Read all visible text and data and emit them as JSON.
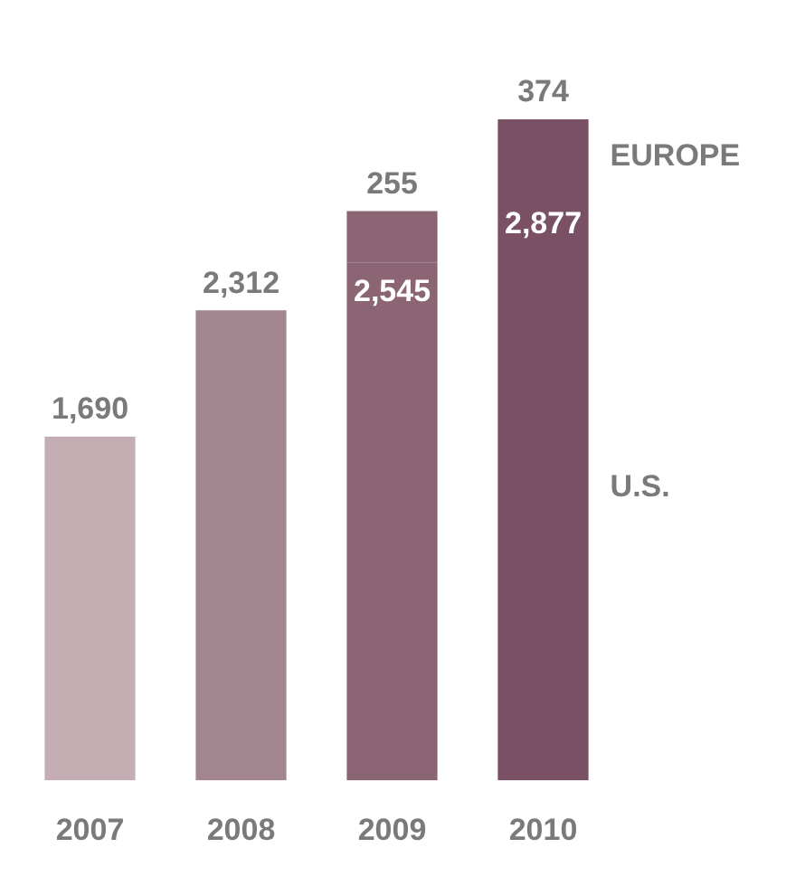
{
  "chart_data": {
    "type": "bar",
    "stacked": true,
    "categories": [
      "2007",
      "2008",
      "2009",
      "2010"
    ],
    "series": [
      {
        "name": "U.S.",
        "colors": [
          "#c4aeb3",
          "#a3858f",
          "#8c6575",
          "#7a5064"
        ],
        "values": [
          1690,
          2312,
          2545,
          2877
        ],
        "value_labels": [
          "1,690",
          "2,312",
          "2,545",
          "2,877"
        ]
      },
      {
        "name": "EUROPE",
        "colors": [
          "#c4aeb3",
          "#a3858f",
          "#8c6575",
          "#7a5064"
        ],
        "values": [
          null,
          null,
          255,
          374
        ],
        "value_labels": [
          null,
          null,
          "255",
          "374"
        ]
      }
    ],
    "legend": false,
    "grid": false
  }
}
